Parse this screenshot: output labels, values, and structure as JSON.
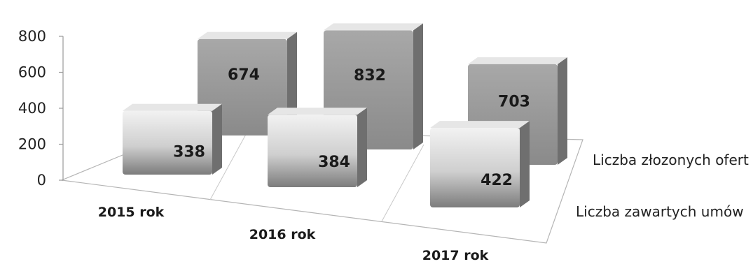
{
  "chart_data": {
    "type": "bar",
    "subtype": "3d-column",
    "title": "",
    "xlabel": "",
    "ylabel": "",
    "categories": [
      "2015 rok",
      "2016 rok",
      "2017 rok"
    ],
    "series": [
      {
        "name": "Liczba złozonych ofert",
        "values": [
          674,
          832,
          703
        ],
        "value_labels": [
          "674",
          "832",
          "703"
        ],
        "color": "#8a8a8a"
      },
      {
        "name": "Liczba zawartych umów",
        "values": [
          338,
          384,
          422
        ],
        "value_labels": [
          "338",
          "384",
          "422"
        ],
        "color": "#c4c4c4"
      }
    ],
    "ylim": [
      0,
      800
    ],
    "yticks": [
      "0",
      "200",
      "400",
      "600",
      "800"
    ],
    "grid": false,
    "legend": "series labels along depth axis (right)"
  }
}
